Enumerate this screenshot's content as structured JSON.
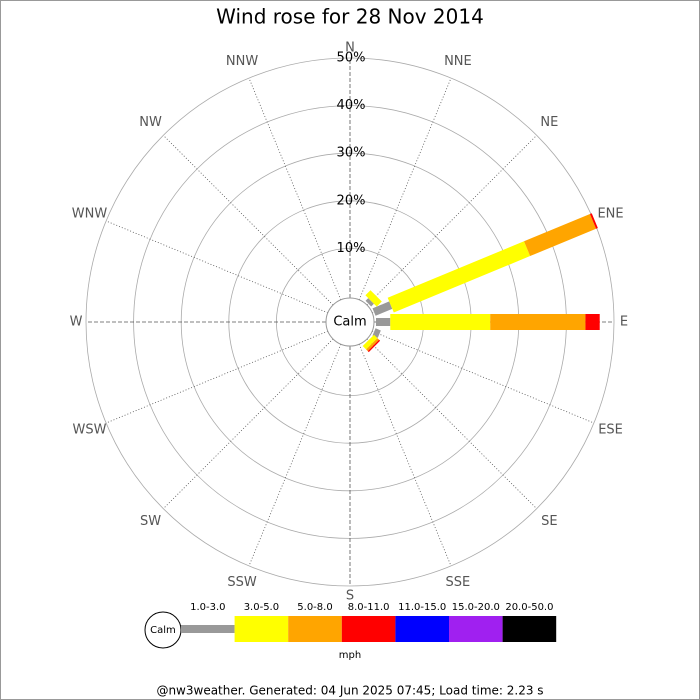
{
  "chart_data": {
    "type": "windrose",
    "title": "Wind rose for 28 Nov 2014",
    "calm_label": "Calm",
    "categories": [
      "N",
      "NNE",
      "NE",
      "ENE",
      "E",
      "ESE",
      "SE",
      "SSE",
      "S",
      "SSW",
      "SW",
      "WSW",
      "W",
      "WNW",
      "NW",
      "NNW"
    ],
    "rlim": [
      0,
      50
    ],
    "rticks": [
      {
        "value": 10,
        "label": "10%"
      },
      {
        "value": 20,
        "label": "20%"
      },
      {
        "value": 30,
        "label": "30%"
      },
      {
        "value": 40,
        "label": "40%"
      },
      {
        "value": 50,
        "label": "50%"
      }
    ],
    "series": [
      {
        "name": "1.0-3.0",
        "color": "#999999",
        "values": [
          0,
          0,
          0.8,
          3.8,
          3,
          1.2,
          0,
          0,
          0,
          0,
          0,
          0,
          0,
          0,
          0,
          0
        ]
      },
      {
        "name": "3.0-5.0",
        "color": "#ffff00",
        "values": [
          0,
          0,
          1.5,
          31,
          21,
          0,
          1,
          0,
          0,
          0,
          0,
          0,
          0,
          0,
          0,
          0
        ]
      },
      {
        "name": "5.0-8.0",
        "color": "#ffa500",
        "values": [
          0,
          0,
          0,
          15,
          20,
          0,
          0.5,
          0,
          0,
          0,
          0,
          0,
          0,
          0,
          0,
          0
        ]
      },
      {
        "name": "8.0-11.0",
        "color": "#ff0000",
        "values": [
          0,
          0,
          0,
          0.4,
          3,
          0,
          0.3,
          0,
          0,
          0,
          0,
          0,
          0,
          0,
          0,
          0
        ]
      },
      {
        "name": "11.0-15.0",
        "color": "#0000ff",
        "values": [
          0,
          0,
          0,
          0,
          0,
          0,
          0,
          0,
          0,
          0,
          0,
          0,
          0,
          0,
          0,
          0
        ]
      },
      {
        "name": "15.0-20.0",
        "color": "#a020f0",
        "values": [
          0,
          0,
          0,
          0,
          0,
          0,
          0,
          0,
          0,
          0,
          0,
          0,
          0,
          0,
          0,
          0
        ]
      },
      {
        "name": "20.0-50.0",
        "color": "#000000",
        "values": [
          0,
          0,
          0,
          0,
          0,
          0,
          0,
          0,
          0,
          0,
          0,
          0,
          0,
          0,
          0,
          0
        ]
      }
    ],
    "legend_unit": "mph",
    "footer": "@nw3weather. Generated: 04 Jun 2025 07:45; Load time: 2.23 s"
  }
}
